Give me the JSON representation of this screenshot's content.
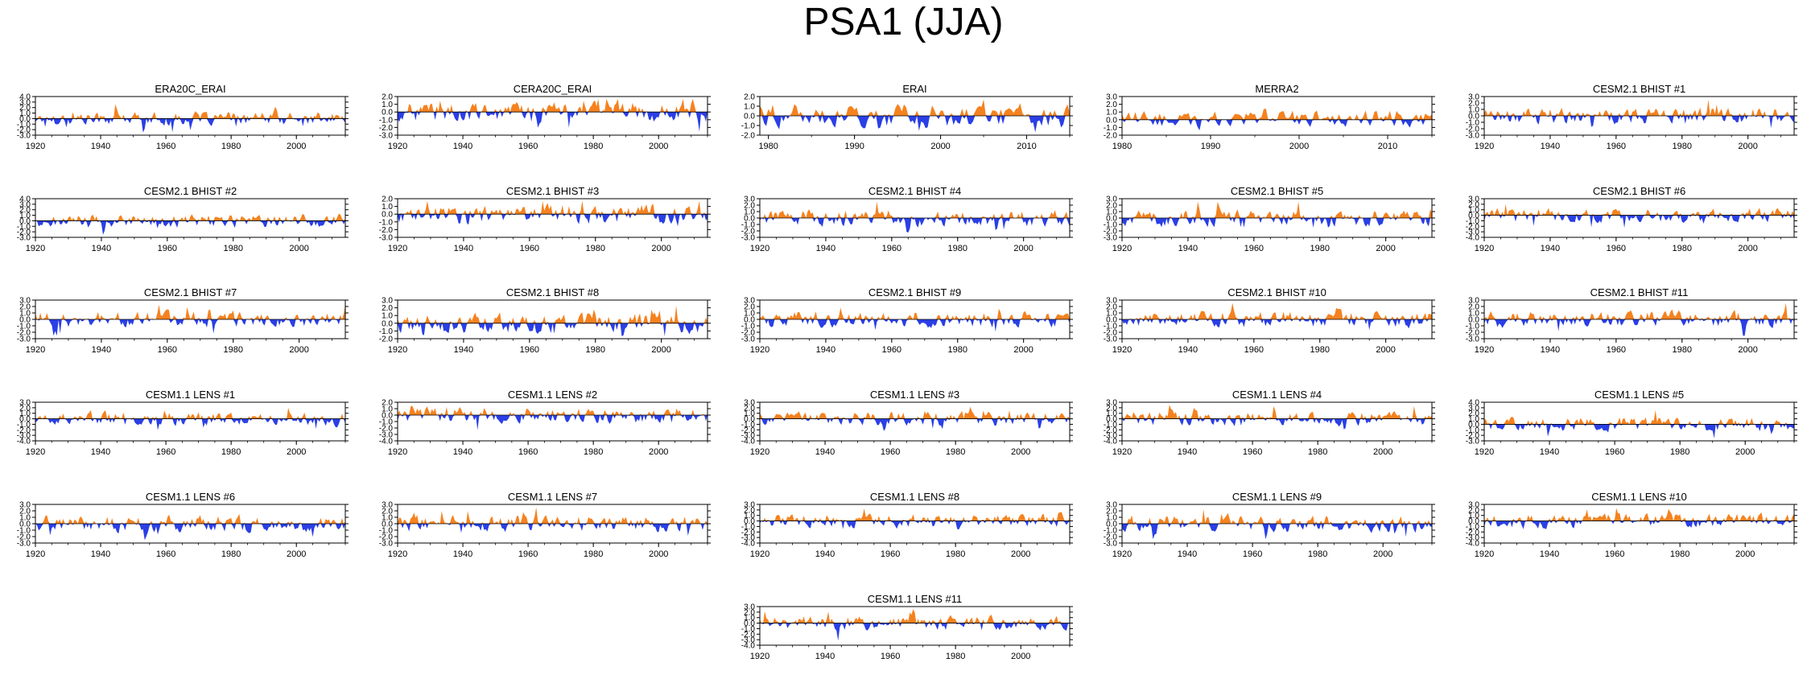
{
  "title": "PSA1 (JJA)",
  "colors": {
    "positive": "#F5821F",
    "negative": "#2A3FE5",
    "axis": "#000000"
  },
  "chart_data": [
    {
      "type": "area",
      "title": "ERA20C_ERAI",
      "x_range": [
        1920,
        2015
      ],
      "xticks": [
        1920,
        1940,
        1960,
        1980,
        2000
      ],
      "ylim": [
        -3.0,
        4.0
      ],
      "yticks": [
        "4.0",
        "3.0",
        "2.0",
        "1.0",
        "0.0",
        "-1.0",
        "-2.0",
        "-3.0"
      ]
    },
    {
      "type": "area",
      "title": "CERA20C_ERAI",
      "x_range": [
        1920,
        2015
      ],
      "xticks": [
        1920,
        1940,
        1960,
        1980,
        2000
      ],
      "ylim": [
        -3.0,
        2.0
      ],
      "yticks": [
        "2.0",
        "1.0",
        "0.0",
        "-1.0",
        "-2.0",
        "-3.0"
      ]
    },
    {
      "type": "area",
      "title": "ERAI",
      "x_range": [
        1979,
        2015
      ],
      "xticks": [
        1980,
        1990,
        2000,
        2010
      ],
      "ylim": [
        -2.0,
        2.0
      ],
      "yticks": [
        "2.0",
        "1.0",
        "0.0",
        "-1.0",
        "-2.0"
      ]
    },
    {
      "type": "area",
      "title": "MERRA2",
      "x_range": [
        1980,
        2015
      ],
      "xticks": [
        1980,
        1990,
        2000,
        2010
      ],
      "ylim": [
        -2.0,
        3.0
      ],
      "yticks": [
        "3.0",
        "2.0",
        "1.0",
        "0.0",
        "-1.0",
        "-2.0"
      ]
    },
    {
      "type": "area",
      "title": "CESM2.1 BHIST #1",
      "x_range": [
        1920,
        2014
      ],
      "xticks": [
        1920,
        1940,
        1960,
        1980,
        2000
      ],
      "ylim": [
        -3.0,
        3.0
      ],
      "yticks": [
        "3.0",
        "2.0",
        "1.0",
        "0.0",
        "-1.0",
        "-2.0",
        "-3.0"
      ]
    },
    {
      "type": "area",
      "title": "CESM2.1 BHIST #2",
      "x_range": [
        1920,
        2014
      ],
      "xticks": [
        1920,
        1940,
        1960,
        1980,
        2000
      ],
      "ylim": [
        -3.0,
        4.0
      ],
      "yticks": [
        "4.0",
        "3.0",
        "2.0",
        "1.0",
        "0.0",
        "-1.0",
        "-2.0",
        "-3.0"
      ]
    },
    {
      "type": "area",
      "title": "CESM2.1 BHIST #3",
      "x_range": [
        1920,
        2014
      ],
      "xticks": [
        1920,
        1940,
        1960,
        1980,
        2000
      ],
      "ylim": [
        -3.0,
        2.0
      ],
      "yticks": [
        "2.0",
        "1.0",
        "0.0",
        "-1.0",
        "-2.0",
        "-3.0"
      ]
    },
    {
      "type": "area",
      "title": "CESM2.1 BHIST #4",
      "x_range": [
        1920,
        2014
      ],
      "xticks": [
        1920,
        1940,
        1960,
        1980,
        2000
      ],
      "ylim": [
        -3.0,
        3.0
      ],
      "yticks": [
        "3.0",
        "2.0",
        "1.0",
        "0.0",
        "-1.0",
        "-2.0",
        "-3.0"
      ]
    },
    {
      "type": "area",
      "title": "CESM2.1 BHIST #5",
      "x_range": [
        1920,
        2014
      ],
      "xticks": [
        1920,
        1940,
        1960,
        1980,
        2000
      ],
      "ylim": [
        -3.0,
        3.0
      ],
      "yticks": [
        "3.0",
        "2.0",
        "1.0",
        "0.0",
        "-1.0",
        "-2.0",
        "-3.0"
      ]
    },
    {
      "type": "area",
      "title": "CESM2.1 BHIST #6",
      "x_range": [
        1920,
        2014
      ],
      "xticks": [
        1920,
        1940,
        1960,
        1980,
        2000
      ],
      "ylim": [
        -4.0,
        3.0
      ],
      "yticks": [
        "3.0",
        "2.0",
        "1.0",
        "0.0",
        "-1.0",
        "-2.0",
        "-3.0",
        "-4.0"
      ]
    },
    {
      "type": "area",
      "title": "CESM2.1 BHIST #7",
      "x_range": [
        1920,
        2014
      ],
      "xticks": [
        1920,
        1940,
        1960,
        1980,
        2000
      ],
      "ylim": [
        -3.0,
        3.0
      ],
      "yticks": [
        "3.0",
        "2.0",
        "1.0",
        "0.0",
        "-1.0",
        "-2.0",
        "-3.0"
      ]
    },
    {
      "type": "area",
      "title": "CESM2.1 BHIST #8",
      "x_range": [
        1920,
        2014
      ],
      "xticks": [
        1920,
        1940,
        1960,
        1980,
        2000
      ],
      "ylim": [
        -2.0,
        3.0
      ],
      "yticks": [
        "3.0",
        "2.0",
        "1.0",
        "0.0",
        "-1.0",
        "-2.0"
      ]
    },
    {
      "type": "area",
      "title": "CESM2.1 BHIST #9",
      "x_range": [
        1920,
        2014
      ],
      "xticks": [
        1920,
        1940,
        1960,
        1980,
        2000
      ],
      "ylim": [
        -3.0,
        3.0
      ],
      "yticks": [
        "3.0",
        "2.0",
        "1.0",
        "0.0",
        "-1.0",
        "-2.0",
        "-3.0"
      ]
    },
    {
      "type": "area",
      "title": "CESM2.1 BHIST #10",
      "x_range": [
        1920,
        2014
      ],
      "xticks": [
        1920,
        1940,
        1960,
        1980,
        2000
      ],
      "ylim": [
        -3.0,
        3.0
      ],
      "yticks": [
        "3.0",
        "2.0",
        "1.0",
        "0.0",
        "-1.0",
        "-2.0",
        "-3.0"
      ]
    },
    {
      "type": "area",
      "title": "CESM2.1 BHIST #11",
      "x_range": [
        1920,
        2014
      ],
      "xticks": [
        1920,
        1940,
        1960,
        1980,
        2000
      ],
      "ylim": [
        -3.0,
        3.0
      ],
      "yticks": [
        "3.0",
        "2.0",
        "1.0",
        "0.0",
        "-1.0",
        "-2.0",
        "-3.0"
      ]
    },
    {
      "type": "area",
      "title": "CESM1.1 LENS #1",
      "x_range": [
        1920,
        2015
      ],
      "xticks": [
        1920,
        1940,
        1960,
        1980,
        2000
      ],
      "ylim": [
        -4.0,
        3.0
      ],
      "yticks": [
        "3.0",
        "2.0",
        "1.0",
        "0.0",
        "-1.0",
        "-2.0",
        "-3.0",
        "-4.0"
      ]
    },
    {
      "type": "area",
      "title": "CESM1.1 LENS #2",
      "x_range": [
        1920,
        2015
      ],
      "xticks": [
        1920,
        1940,
        1960,
        1980,
        2000
      ],
      "ylim": [
        -4.0,
        2.0
      ],
      "yticks": [
        "2.0",
        "1.0",
        "0.0",
        "-1.0",
        "-2.0",
        "-3.0",
        "-4.0"
      ]
    },
    {
      "type": "area",
      "title": "CESM1.1 LENS #3",
      "x_range": [
        1920,
        2015
      ],
      "xticks": [
        1920,
        1940,
        1960,
        1980,
        2000
      ],
      "ylim": [
        -4.0,
        3.0
      ],
      "yticks": [
        "3.0",
        "2.0",
        "1.0",
        "0.0",
        "-1.0",
        "-2.0",
        "-3.0",
        "-4.0"
      ]
    },
    {
      "type": "area",
      "title": "CESM1.1 LENS #4",
      "x_range": [
        1920,
        2015
      ],
      "xticks": [
        1920,
        1940,
        1960,
        1980,
        2000
      ],
      "ylim": [
        -4.0,
        3.0
      ],
      "yticks": [
        "3.0",
        "2.0",
        "1.0",
        "0.0",
        "-1.0",
        "-2.0",
        "-3.0",
        "-4.0"
      ]
    },
    {
      "type": "area",
      "title": "CESM1.1 LENS #5",
      "x_range": [
        1920,
        2015
      ],
      "xticks": [
        1920,
        1940,
        1960,
        1980,
        2000
      ],
      "ylim": [
        -3.0,
        4.0
      ],
      "yticks": [
        "4.0",
        "3.0",
        "2.0",
        "1.0",
        "0.0",
        "-1.0",
        "-2.0",
        "-3.0"
      ]
    },
    {
      "type": "area",
      "title": "CESM1.1 LENS #6",
      "x_range": [
        1920,
        2015
      ],
      "xticks": [
        1920,
        1940,
        1960,
        1980,
        2000
      ],
      "ylim": [
        -3.0,
        3.0
      ],
      "yticks": [
        "3.0",
        "2.0",
        "1.0",
        "0.0",
        "-1.0",
        "-2.0",
        "-3.0"
      ]
    },
    {
      "type": "area",
      "title": "CESM1.1 LENS #7",
      "x_range": [
        1920,
        2015
      ],
      "xticks": [
        1920,
        1940,
        1960,
        1980,
        2000
      ],
      "ylim": [
        -3.0,
        3.0
      ],
      "yticks": [
        "3.0",
        "2.0",
        "1.0",
        "0.0",
        "-1.0",
        "-2.0",
        "-3.0"
      ]
    },
    {
      "type": "area",
      "title": "CESM1.1 LENS #8",
      "x_range": [
        1920,
        2015
      ],
      "xticks": [
        1920,
        1940,
        1960,
        1980,
        2000
      ],
      "ylim": [
        -4.0,
        3.0
      ],
      "yticks": [
        "3.0",
        "2.0",
        "1.0",
        "0.0",
        "-1.0",
        "-2.0",
        "-3.0",
        "-4.0"
      ]
    },
    {
      "type": "area",
      "title": "CESM1.1 LENS #9",
      "x_range": [
        1920,
        2015
      ],
      "xticks": [
        1920,
        1940,
        1960,
        1980,
        2000
      ],
      "ylim": [
        -3.0,
        3.0
      ],
      "yticks": [
        "3.0",
        "2.0",
        "1.0",
        "0.0",
        "-1.0",
        "-2.0",
        "-3.0"
      ]
    },
    {
      "type": "area",
      "title": "CESM1.1 LENS #10",
      "x_range": [
        1920,
        2015
      ],
      "xticks": [
        1920,
        1940,
        1960,
        1980,
        2000
      ],
      "ylim": [
        -4.0,
        3.0
      ],
      "yticks": [
        "3.0",
        "2.0",
        "1.0",
        "0.0",
        "-1.0",
        "-2.0",
        "-3.0",
        "-4.0"
      ]
    },
    {
      "type": "area",
      "title": "CESM1.1 LENS #11",
      "x_range": [
        1920,
        2015
      ],
      "xticks": [
        1920,
        1940,
        1960,
        1980,
        2000
      ],
      "ylim": [
        -4.0,
        3.0
      ],
      "yticks": [
        "3.0",
        "2.0",
        "1.0",
        "0.0",
        "-1.0",
        "-2.0",
        "-3.0",
        "-4.0"
      ]
    }
  ]
}
